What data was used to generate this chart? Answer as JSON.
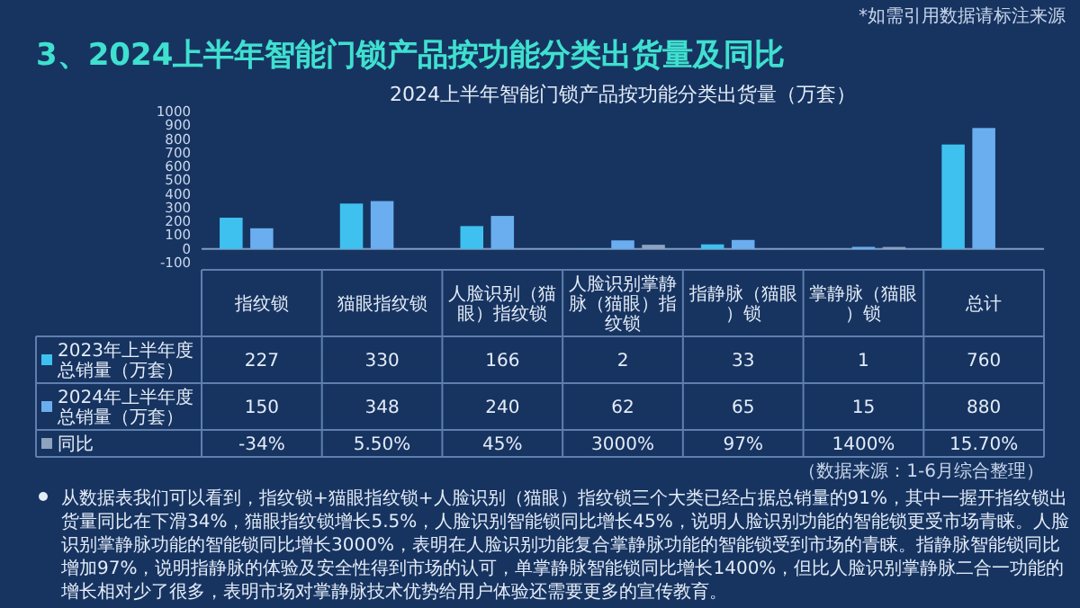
{
  "chart_data": {
    "type": "bar",
    "title": "2024上半年智能门锁产品按功能分类出货量（万套）",
    "subtitle": "3、2024上半年智能门锁产品按功能分类出货量及同比",
    "categories": [
      "指纹锁",
      "猫眼指纹锁",
      "人脸识别（猫眼）指纹锁",
      "人脸识别掌静脉（猫眼）指纹锁",
      "指静脉（猫眼）锁",
      "掌静脉（猫眼）锁",
      "总计"
    ],
    "series": [
      {
        "name": "2023年上半年度总销量（万套）",
        "color": "#3fc1f0",
        "values": [
          227,
          330,
          166,
          2,
          33,
          1,
          760
        ],
        "value_labels": [
          "227",
          "330",
          "166",
          "2",
          "33",
          "1",
          "760"
        ]
      },
      {
        "name": "2024年上半年度总销量（万套）",
        "color": "#6aaef0",
        "values": [
          150,
          348,
          240,
          62,
          65,
          15,
          880
        ],
        "value_labels": [
          "150",
          "348",
          "240",
          "62",
          "65",
          "15",
          "880"
        ]
      },
      {
        "name": "同比",
        "color": "#8fa3bf",
        "values": [
          -0.34,
          0.055,
          0.45,
          30,
          0.97,
          14,
          0.157
        ],
        "value_labels": [
          "-34%",
          "5.50%",
          "45%",
          "3000%",
          "97%",
          "1400%",
          "15.70%"
        ]
      }
    ],
    "ylim": [
      -100,
      1000
    ],
    "yticks": [
      -100,
      0,
      100,
      200,
      300,
      400,
      500,
      600,
      700,
      800,
      900,
      1000
    ],
    "legend": "bottom",
    "grid": false,
    "ref_lines": [
      {
        "axis": "y",
        "value": 0,
        "color": "#7f9cc6"
      }
    ],
    "annotations": [
      "*如需引用数据请标注来源",
      "（数据来源：1-6月综合整理）",
      "从数据表我们可以看到，指纹锁+猫眼指纹锁+人脸识别（猫眼）指纹锁三个大类已经占据总销量的91%，其中一握开指纹锁出货量同比在下滑34%，猫眼指纹锁增长5.5%，人脸识别智能锁同比增长45%，说明人脸识别功能的智能锁更受市场青睐。人脸识别掌静脉功能的智能锁同比增长3000%，表明在人脸识别功能复合掌静脉功能的智能锁受到市场的青睐。指静脉智能锁同比增加97%，说明指静脉的体验及安全性得到市场的认可，单掌静脉智能锁同比增长1400%，但比人脸识别掌静脉二合一功能的增长相对少了很多，表明市场对掌静脉技术优势给用户体验还需要更多的宣传教育。"
    ]
  }
}
